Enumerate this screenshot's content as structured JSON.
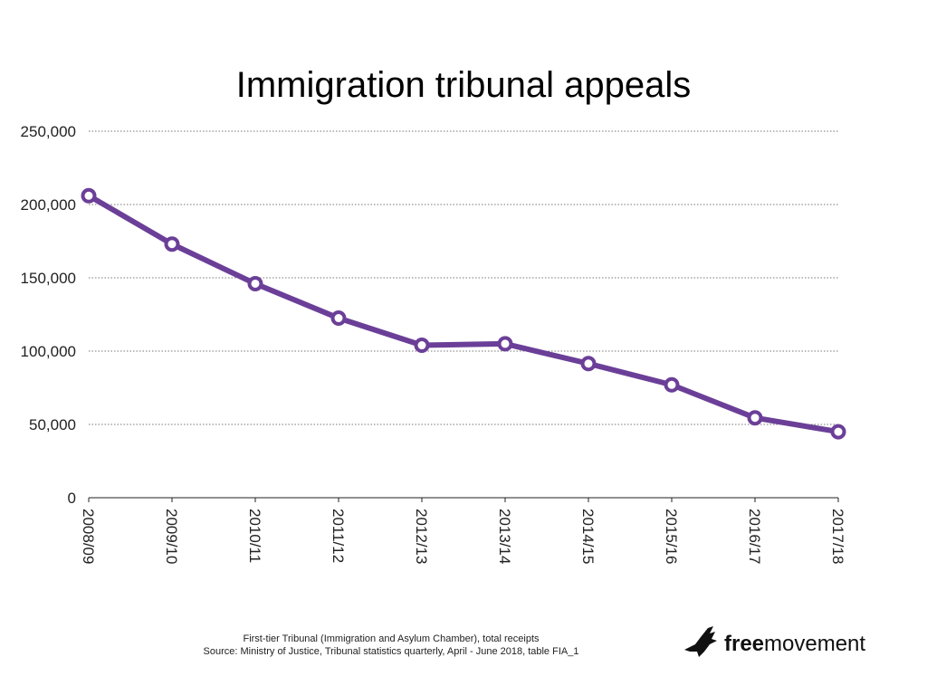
{
  "chart_data": {
    "type": "line",
    "title": "Immigration tribunal appeals",
    "categories": [
      "2008/09",
      "2009/10",
      "2010/11",
      "2011/12",
      "2012/13",
      "2013/14",
      "2014/15",
      "2015/16",
      "2016/17",
      "2017/18"
    ],
    "series": [
      {
        "values": [
          206000,
          173000,
          146000,
          122500,
          104000,
          105000,
          91500,
          77000,
          54500,
          45000
        ]
      }
    ],
    "ylim": [
      0,
      250000
    ],
    "yticks": [
      0,
      50000,
      100000,
      150000,
      200000,
      250000
    ],
    "ytick_labels": [
      "0",
      "50,000",
      "100,000",
      "150,000",
      "200,000",
      "250,000"
    ],
    "grid": "horizontal dotted",
    "line_color": "#6B3F98"
  },
  "footer": {
    "line1": "First-tier Tribunal (Immigration and Asylum Chamber), total receipts",
    "line2": "Source: Ministry of Justice, Tribunal statistics quarterly, April - June 2018, table FIA_1"
  },
  "logo": {
    "icon": "bird-icon",
    "text_bold": "free",
    "text_regular": "movement"
  }
}
